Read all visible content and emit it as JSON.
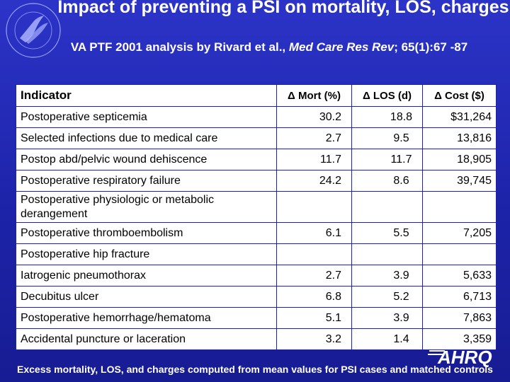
{
  "header": {
    "title": "Impact of preventing a PSI on mortality, LOS, charges",
    "subtitle_pre": "VA PTF 2001 analysis by Rivard et al., ",
    "subtitle_journal": "Med Care Res Rev",
    "subtitle_post": "; 65(1):67 -87"
  },
  "table": {
    "columns": [
      "Indicator",
      "Δ Mort (%)",
      "Δ LOS (d)",
      "Δ Cost ($)"
    ],
    "rows": [
      {
        "indicator": "Postoperative septicemia",
        "mort": "30.2",
        "los": "18.8",
        "cost": "$31,264"
      },
      {
        "indicator": "Selected infections due to medical care",
        "mort": "2.7",
        "los": "9.5",
        "cost": "13,816"
      },
      {
        "indicator": "Postop abd/pelvic wound dehiscence",
        "mort": "11.7",
        "los": "11.7",
        "cost": "18,905"
      },
      {
        "indicator": "Postoperative respiratory failure",
        "mort": "24.2",
        "los": "8.6",
        "cost": "39,745"
      },
      {
        "indicator": "Postoperative physiologic or metabolic derangement",
        "mort": "",
        "los": "",
        "cost": ""
      },
      {
        "indicator": "Postoperative thromboembolism",
        "mort": "6.1",
        "los": "5.5",
        "cost": "7,205"
      },
      {
        "indicator": "Postoperative hip fracture",
        "mort": "",
        "los": "",
        "cost": ""
      },
      {
        "indicator": "Iatrogenic pneumothorax",
        "mort": "2.7",
        "los": "3.9",
        "cost": "5,633"
      },
      {
        "indicator": "Decubitus ulcer",
        "mort": "6.8",
        "los": "5.2",
        "cost": "6,713"
      },
      {
        "indicator": "Postoperative hemorrhage/hematoma",
        "mort": "5.1",
        "los": "3.9",
        "cost": "7,863"
      },
      {
        "indicator": "Accidental puncture or laceration",
        "mort": "3.2",
        "los": "1.4",
        "cost": "3,359"
      }
    ]
  },
  "logo": {
    "text": "AHRQ"
  },
  "footnote": "Excess mortality, LOS, and charges computed from mean values for PSI cases and matched controls",
  "colors": {
    "background": "#1d23a8",
    "text": "#ffffff",
    "table_bg": "#ffffff"
  },
  "icons": {
    "seal": "hhs-seal-icon",
    "logo": "ahrq-logo-icon"
  }
}
